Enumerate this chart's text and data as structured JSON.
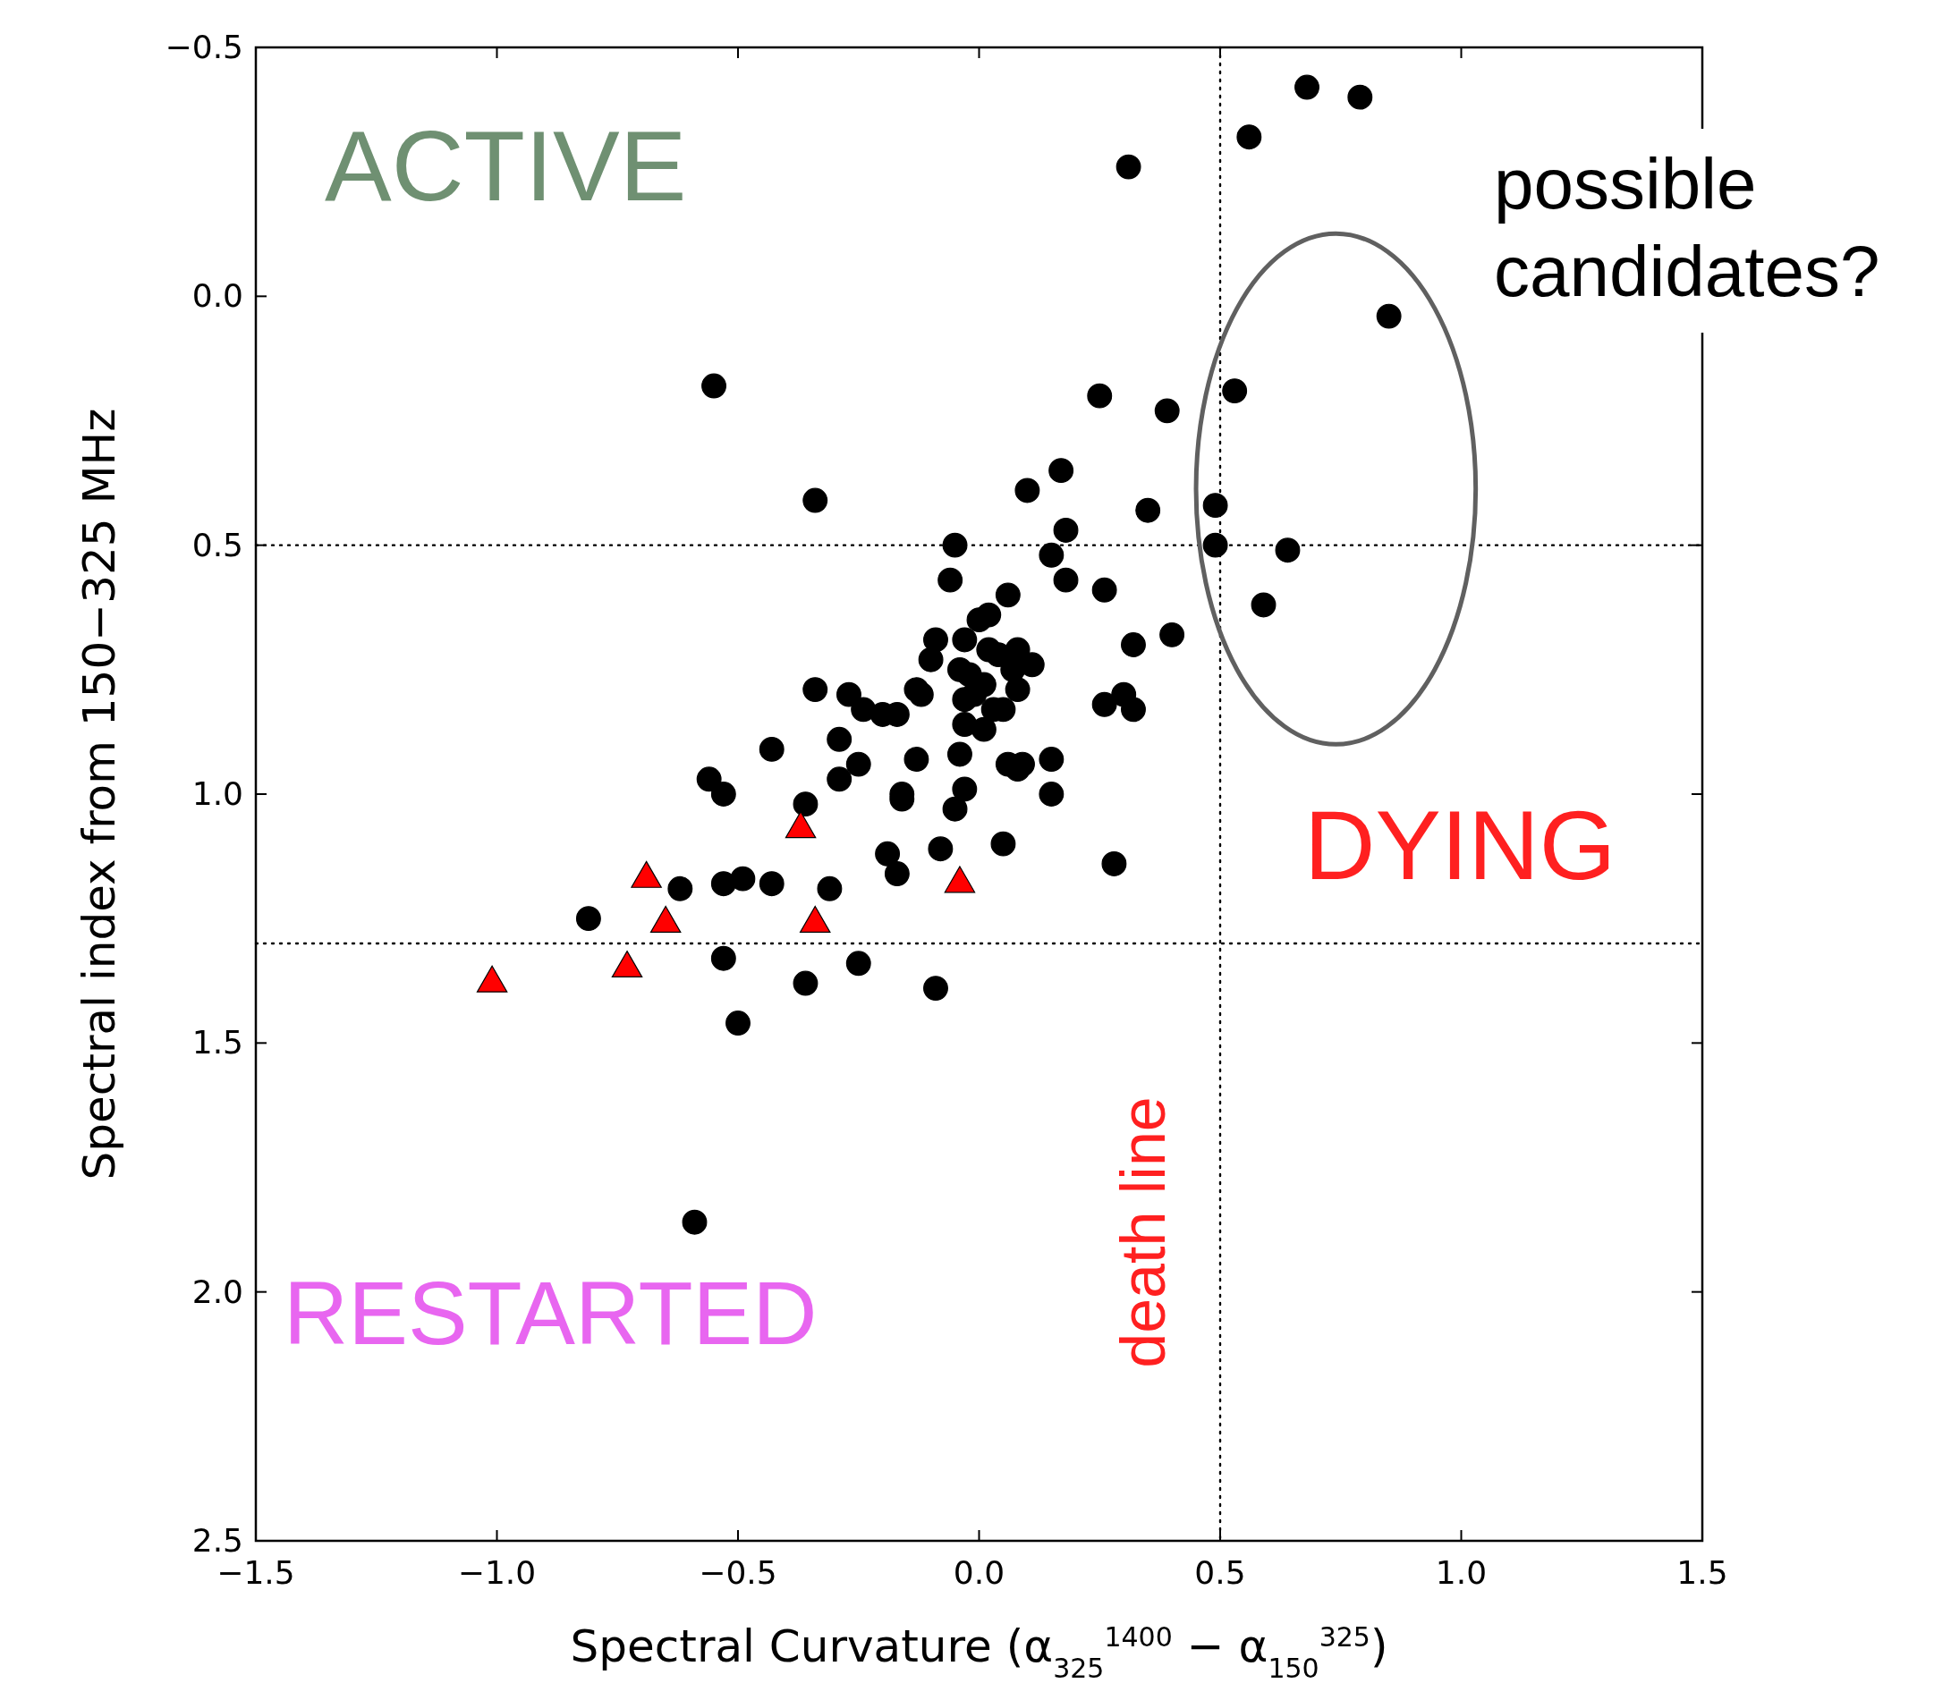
{
  "chart_data": {
    "type": "scatter",
    "xlabel": "Spectral Curvature (α$_{325}$$^{1400}$ − α$_{150}$$^{325}$)",
    "ylabel": "Spectral index from 150−325 MHz",
    "xlim": [
      -1.5,
      1.5
    ],
    "ylim": [
      2.5,
      -0.5
    ],
    "xticks": [
      {
        "value": -1.5,
        "label": "−1.5"
      },
      {
        "value": -1.0,
        "label": "−1.0"
      },
      {
        "value": -0.5,
        "label": "−0.5"
      },
      {
        "value": 0,
        "label": "0.0"
      },
      {
        "value": 0.5,
        "label": "0.5"
      },
      {
        "value": 1.0,
        "label": "1.0"
      },
      {
        "value": 1.5,
        "label": "1.5"
      }
    ],
    "yticks": [
      {
        "value": -0.5,
        "label": "−0.5"
      },
      {
        "value": 0,
        "label": "0.0"
      },
      {
        "value": 0.5,
        "label": "0.5"
      },
      {
        "value": 1.0,
        "label": "1.0"
      },
      {
        "value": 1.5,
        "label": "1.5"
      },
      {
        "value": 2.0,
        "label": "2.0"
      },
      {
        "value": 2.5,
        "label": "2.5"
      }
    ],
    "grid": false,
    "ref_lines": [
      {
        "axis": "x",
        "value": 0.5,
        "line_style": "dotted",
        "color": "#000000"
      },
      {
        "axis": "y",
        "value": 0.5,
        "line_style": "dotted",
        "color": "#000000"
      },
      {
        "axis": "y",
        "value": 1.3,
        "line_style": "dotted",
        "color": "#000000"
      }
    ],
    "annotations": [
      "ACTIVE",
      "DYING",
      "RESTARTED",
      "death line",
      "possible candidates?"
    ],
    "series": [
      {
        "color": "#000000",
        "marker": "circle",
        "x": [
          0.68,
          0.79,
          0.56,
          0.31,
          0.85,
          -0.55,
          0.53,
          0.25,
          0.39,
          -0.34,
          0.1,
          0.17,
          0.35,
          0.49,
          0.49,
          0.64,
          0.59,
          0.18,
          0.15,
          -0.05,
          -0.06,
          0.18,
          0.26,
          0.06,
          0.4,
          0.32,
          0.02,
          0.0,
          -0.09,
          -0.03,
          0.02,
          0.04,
          0.08,
          0.11,
          -0.1,
          -0.04,
          -0.02,
          0.07,
          -0.13,
          -0.12,
          0.01,
          0.08,
          -0.01,
          -0.03,
          -0.34,
          -0.27,
          0.3,
          -0.24,
          -0.2,
          -0.17,
          0.03,
          0.05,
          0.26,
          0.32,
          -0.03,
          0.01,
          -0.29,
          -0.43,
          -0.04,
          -0.25,
          -0.13,
          0.06,
          0.09,
          0.15,
          0.08,
          -0.29,
          -0.56,
          -0.53,
          -0.16,
          -0.16,
          -0.03,
          0.15,
          -0.36,
          -0.05,
          0.05,
          -0.08,
          -0.19,
          -0.17,
          0.28,
          -0.62,
          -0.53,
          -0.49,
          -0.43,
          -0.31,
          -0.81,
          -0.53,
          -0.25,
          -0.36,
          -0.09,
          -0.5,
          -0.59
        ],
        "values": [
          -0.42,
          -0.4,
          -0.32,
          -0.26,
          0.04,
          0.18,
          0.19,
          0.2,
          0.23,
          0.41,
          0.39,
          0.35,
          0.43,
          0.42,
          0.5,
          0.51,
          0.62,
          0.47,
          0.52,
          0.5,
          0.57,
          0.57,
          0.59,
          0.6,
          0.68,
          0.7,
          0.64,
          0.65,
          0.69,
          0.69,
          0.71,
          0.72,
          0.71,
          0.74,
          0.73,
          0.75,
          0.76,
          0.75,
          0.79,
          0.8,
          0.78,
          0.79,
          0.8,
          0.81,
          0.79,
          0.8,
          0.8,
          0.83,
          0.84,
          0.84,
          0.83,
          0.83,
          0.82,
          0.83,
          0.86,
          0.87,
          0.89,
          0.91,
          0.92,
          0.94,
          0.93,
          0.94,
          0.94,
          0.93,
          0.95,
          0.97,
          0.97,
          1.0,
          1.0,
          1.01,
          0.99,
          1.0,
          1.02,
          1.03,
          1.1,
          1.11,
          1.12,
          1.16,
          1.14,
          1.19,
          1.18,
          1.17,
          1.18,
          1.19,
          1.25,
          1.33,
          1.34,
          1.38,
          1.39,
          1.46,
          1.86
        ]
      },
      {
        "color": "#ff0000",
        "marker": "triangle",
        "x": [
          -0.37,
          -0.69,
          -0.04,
          -0.65,
          -0.34,
          -0.73,
          -1.01
        ],
        "values": [
          1.07,
          1.17,
          1.18,
          1.26,
          1.26,
          1.35,
          1.38
        ]
      }
    ]
  }
}
